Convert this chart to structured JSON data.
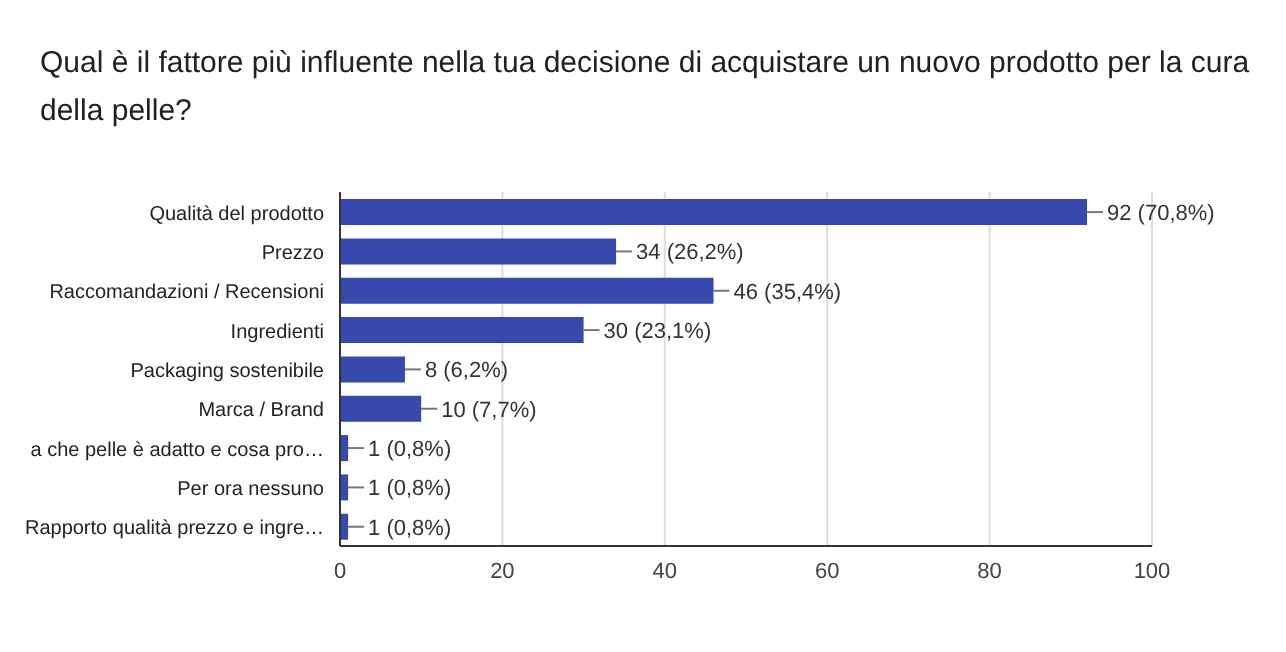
{
  "chart_data": {
    "type": "bar",
    "orientation": "horizontal",
    "title": "Qual è il fattore più influente nella tua decisione di acquistare un nuovo prodotto per la cura della pelle?",
    "categories": [
      "Qualità del prodotto",
      "Prezzo",
      "Raccomandazioni / Recensioni",
      "Ingredienti",
      "Packaging sostenibile",
      "Marca / Brand",
      "a che pelle è adatto e cosa pro…",
      "Per ora nessuno",
      "Rapporto qualità prezzo e ingre…"
    ],
    "values": [
      92,
      34,
      46,
      30,
      8,
      10,
      1,
      1,
      1
    ],
    "value_labels": [
      "92 (70,8%)",
      "34 (26,2%)",
      "46 (35,4%)",
      "30 (23,1%)",
      "8 (6,2%)",
      "10 (7,7%)",
      "1 (0,8%)",
      "1 (0,8%)",
      "1 (0,8%)"
    ],
    "color": "#3949ab",
    "xlim": [
      0,
      100
    ],
    "xticks": [
      0,
      20,
      40,
      60,
      80,
      100
    ],
    "grid": "x"
  }
}
